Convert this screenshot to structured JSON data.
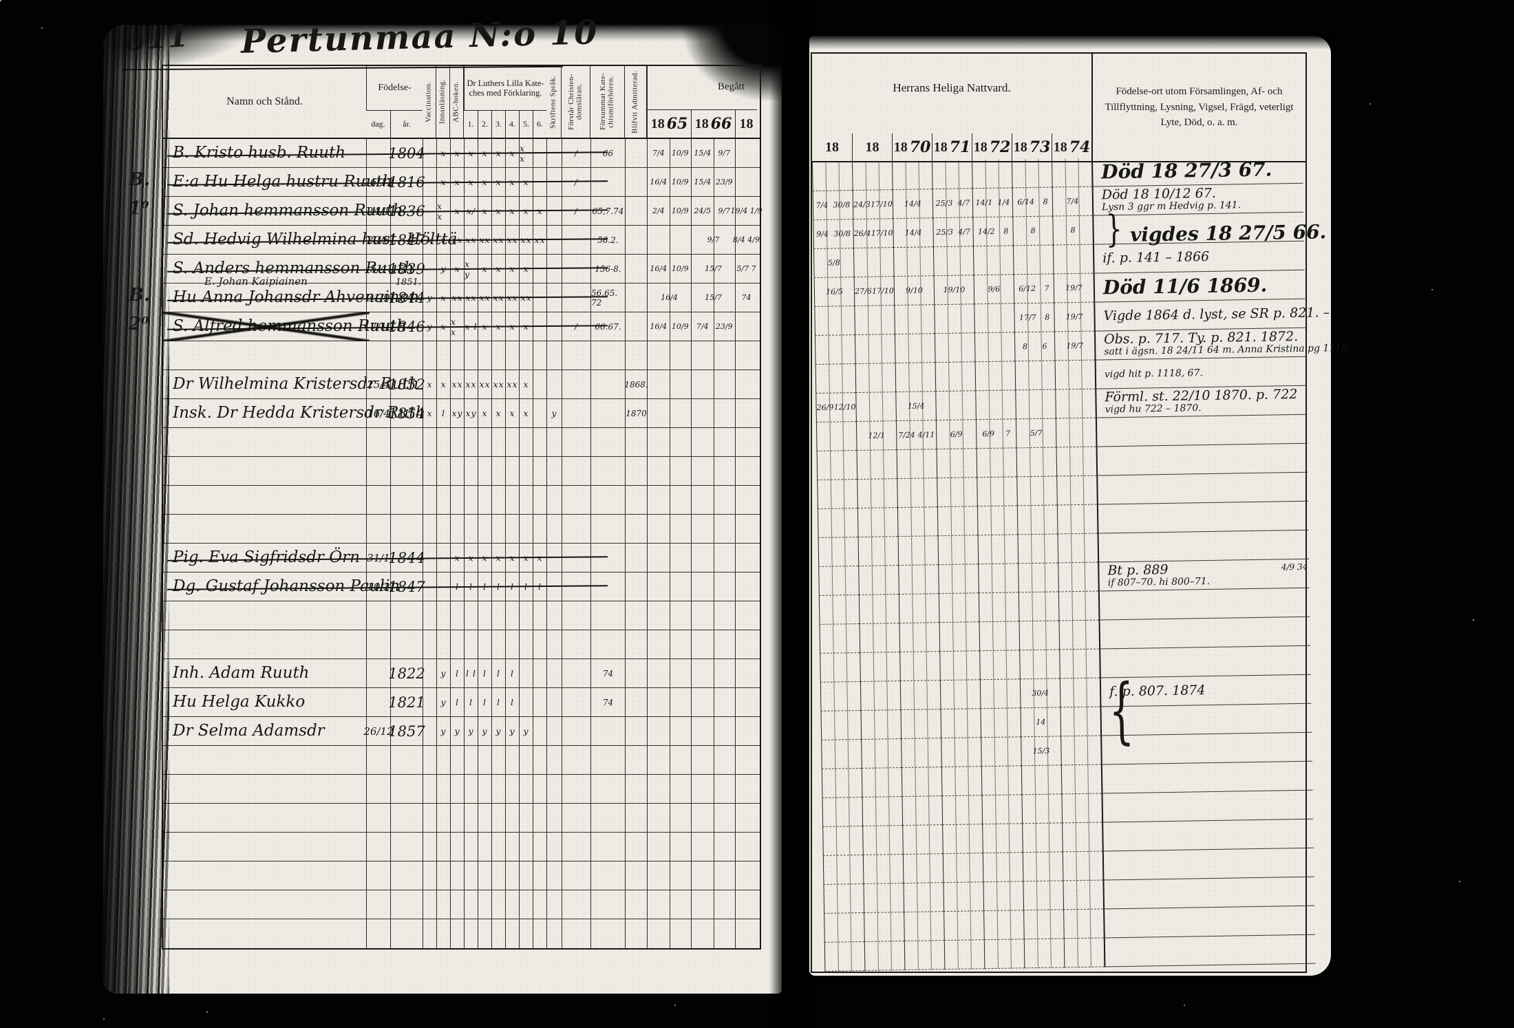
{
  "scan": {
    "left_page_number": "811",
    "title": "Pertunmaa N:o 10",
    "ink_color": "#181715",
    "paper_color": "#edebe4",
    "background_color": "#020202"
  },
  "left_page": {
    "columns": {
      "name": "Namn och Stånd.",
      "fodelse": "Födelse-",
      "dag": "dag.",
      "ar": "år.",
      "vaccination": "Vaccination.",
      "innanlasning": "Innanläsning.",
      "abc": "ABC-boken.",
      "kateches": "Dr Luthers Lilla Kate­ches med Förklaring.",
      "kateches_sub": [
        "1.",
        "2.",
        "3.",
        "4.",
        "5.",
        "6."
      ],
      "skrift": "Skriftens Språk.",
      "forstar": "Förstår Christen­domsläran.",
      "forsummat": "Försummat Kate­chismiförhören.",
      "blifvit": "Blifvit Admit­terad.",
      "begatt": "Begått"
    },
    "years": [
      {
        "printed": "18",
        "hand": "65"
      },
      {
        "printed": "18",
        "hand": "66"
      },
      {
        "printed": "18",
        "hand": ""
      }
    ],
    "rows": [
      {
        "r": 0,
        "margin": "",
        "name": "B. Kristo husb. Ruuth",
        "dag": "",
        "ar": "1804",
        "cat": [
          "",
          "x",
          "x",
          "x",
          "x",
          "x",
          "x",
          "x x",
          ""
        ],
        "skrift": "",
        "forstar": "/",
        "forsummat": "66",
        "admit": "",
        "y65": "7/4 10/9",
        "y66": "15/4 9/7",
        "y18": "",
        "struck": true
      },
      {
        "r": 1,
        "margin": "B.",
        "name": "E:a Hu Helga hustru Ruuth",
        "dag": "26/12",
        "ar": "1816",
        "cat": [
          "",
          "x",
          "x",
          "x",
          "x",
          "x",
          "x",
          "x",
          ""
        ],
        "skrift": "",
        "forstar": "/",
        "forsummat": "",
        "admit": "",
        "y65": "16/4 10/9",
        "y66": "15/4 23/9",
        "y18": "",
        "struck": true
      },
      {
        "r": 2,
        "margin": "1⁰",
        "name": "S. Johan hemmansson Ruuth",
        "dag": "24/1",
        "ar": "1836",
        "cat": [
          "",
          "x x",
          "x",
          "x/",
          "x",
          "x",
          "x",
          "x",
          "x"
        ],
        "skrift": "",
        "forstar": "/",
        "forsummat": "65,7.74",
        "admit": "",
        "y65": "2/4 10/9",
        "y66": "24/5 9/7",
        "y18": "19/4 1/9",
        "struck": true
      },
      {
        "r": 3,
        "margin": "",
        "name": "Sd. Hedvig Wilhelmina hust. Hölttä",
        "dag": "20/6",
        "ar": "1847",
        "cat": [
          "x",
          "x",
          "xx",
          "xx",
          "xx",
          "xx",
          "xx",
          "xx",
          "xx"
        ],
        "skrift": "",
        "forstar": "",
        "forsummat": "58.2.",
        "admit": "",
        "y65": "",
        "y66": "9/7",
        "y18": "8/4 4/9",
        "struck": true
      },
      {
        "r": 4,
        "margin": "",
        "name": "S. Anders hemmansson Ruuth",
        "name2": "E. Johan Kaipiainen",
        "dag": "5/4",
        "ar": "1839",
        "ar2": "1851.",
        "cat": [
          "",
          "y",
          "x",
          "x y",
          "x",
          "x",
          "x",
          "x",
          ""
        ],
        "skrift": "",
        "forstar": "",
        "forsummat": "156-8.",
        "admit": "",
        "y65": "16/4 10/9",
        "y66": "15/7",
        "y18": "5/7 7",
        "struck": true
      },
      {
        "r": 5,
        "margin": "B.",
        "name": "Hu Anna Johansdr Ahvenainen",
        "dag": "31/9",
        "ar": "1844",
        "cat": [
          "y",
          "x",
          "xx",
          "xx",
          "xx",
          "xx",
          "xx",
          "xx",
          ""
        ],
        "skrift": "",
        "forstar": "",
        "forsummat": "56.65. 72",
        "admit": "",
        "y65": "16/4",
        "y66": "15/7",
        "y18": "74",
        "struck": true
      },
      {
        "r": 6,
        "margin": "2⁰",
        "name": "S. Alfred hemmansson Ruuth",
        "dag": "17/10",
        "ar": "1846",
        "cat": [
          "y",
          "x",
          "x x",
          "x l",
          "x",
          "x",
          "x",
          "x",
          ""
        ],
        "skrift": "",
        "forstar": "/",
        "forsummat": "66.67.",
        "admit": "",
        "y65": "16/4 10/9",
        "y66": "7/4 23/9",
        "y18": "",
        "struck": true,
        "cross": true
      },
      {
        "r": 8,
        "margin": "",
        "name": "Dr Wilhelmina Kristersdr Ruth",
        "dag": "25/4",
        "ar": "1852",
        "cat": [
          "x",
          "x",
          "xx",
          "xx",
          "xx",
          "xx",
          "xx",
          "x",
          ""
        ],
        "skrift": "",
        "forstar": "",
        "forsummat": "",
        "admit": "1868.",
        "y65": "",
        "y66": "",
        "y18": ""
      },
      {
        "r": 9,
        "margin": "",
        "name": "Insk. Dr Hedda Kristersdr Ruth",
        "dag": "16/4",
        "ar": "1854",
        "cat": [
          "x",
          "l",
          "xy",
          "xy",
          "x",
          "x",
          "x",
          "x",
          ""
        ],
        "skrift": "y",
        "forstar": "",
        "forsummat": "",
        "admit": "1870",
        "y65": "",
        "y66": "",
        "y18": ""
      },
      {
        "r": 14,
        "margin": "",
        "name": "Pig. Eva Sigfridsdr Örn",
        "dag": "31/1",
        "ar": "1844",
        "cat": [
          "",
          "",
          "x",
          "x",
          "x",
          "x",
          "x",
          "x",
          "x"
        ],
        "skrift": "",
        "forstar": "",
        "forsummat": "",
        "admit": "",
        "y65": "",
        "y66": "",
        "y18": "",
        "struck": true
      },
      {
        "r": 15,
        "margin": "",
        "name": "Dg. Gustaf Johansson Paulin",
        "dag": "10/2",
        "ar": "1847",
        "cat": [
          "",
          "",
          "l",
          "l",
          "l",
          "l",
          "l",
          "l",
          "l"
        ],
        "skrift": "",
        "forstar": "",
        "forsummat": "",
        "admit": "",
        "y65": "",
        "y66": "",
        "y18": "",
        "struck": true
      },
      {
        "r": 18,
        "margin": "",
        "name": "Inh. Adam Ruuth",
        "dag": "",
        "ar": "1822",
        "cat": [
          "",
          "y",
          "l",
          "l l",
          "l",
          "l",
          "l",
          "",
          ""
        ],
        "skrift": "",
        "forstar": "",
        "forsummat": "74",
        "admit": "",
        "y65": "",
        "y66": "",
        "y18": ""
      },
      {
        "r": 19,
        "margin": "",
        "name": "Hu Helga Kukko",
        "dag": "",
        "ar": "1821",
        "cat": [
          "",
          "y",
          "l",
          "l",
          "l",
          "l",
          "l",
          "",
          ""
        ],
        "skrift": "",
        "forstar": "",
        "forsummat": "74",
        "admit": "",
        "y65": "",
        "y66": "",
        "y18": ""
      },
      {
        "r": 20,
        "margin": "",
        "name": "Dr Selma Adamsdr",
        "dag": "26/12",
        "ar": "1857",
        "cat": [
          "",
          "y",
          "y",
          "y",
          "y",
          "y",
          "y",
          "y",
          ""
        ],
        "skrift": "",
        "forstar": "",
        "forsummat": "",
        "admit": "",
        "y65": "",
        "y66": "",
        "y18": ""
      }
    ]
  },
  "right_page": {
    "header": "Herrans Heliga Nattvard.",
    "notes_header": "Födelse-ort utom Församlingen, Af- och Tillflyttning, Lysning, Vigsel, Frägd, veterligt Lyte, Död, o. a. m.",
    "years": [
      {
        "printed": "18",
        "hand": ""
      },
      {
        "printed": "18",
        "hand": ""
      },
      {
        "printed": "18",
        "hand": "70"
      },
      {
        "printed": "18",
        "hand": "71"
      },
      {
        "printed": "18",
        "hand": "72"
      },
      {
        "printed": "18",
        "hand": "73"
      },
      {
        "printed": "18",
        "hand": "74"
      }
    ],
    "rows": [
      {
        "r": 0,
        "cells": [
          "",
          "",
          "",
          "",
          "",
          "",
          ""
        ],
        "note": "Död 18 27/3 67.",
        "note_big": true
      },
      {
        "r": 1,
        "cells": [
          "7/4 30/8",
          "24/3 17/10",
          "14/4",
          "25/3 4/7",
          "14/1 1/4",
          "6/14 8",
          "7/4"
        ],
        "note": "Död 18 10/12 67.",
        "note2": "Lysn 3 ggr m Hedvig p. 141."
      },
      {
        "r": 2,
        "cells": [
          "9/4 30/8",
          "26/4 17/10",
          "14/4",
          "25/3 4/7",
          "14/2 8",
          "8",
          "8"
        ],
        "note": "vigdes 18 27/5 66.",
        "note_big": true,
        "brace_right": true
      },
      {
        "r": 3,
        "cells": [
          "5/8",
          "",
          "",
          "",
          "",
          "",
          ""
        ],
        "note": "if. p. 141 – 1866"
      },
      {
        "r": 4,
        "cells": [
          "16/5",
          "27/6 17/10",
          "9/10",
          "19/10",
          "9/6",
          "6/12 7",
          "19/7"
        ],
        "note": "Död 11/6 1869.",
        "note_big": true
      },
      {
        "r": 5,
        "cells": [
          "",
          "",
          "",
          "",
          "",
          "17/7 8",
          "19/7"
        ],
        "note": "Vigde 1864 d. lyst, se SR p. 821. –"
      },
      {
        "r": 6,
        "cells": [
          "",
          "",
          "",
          "",
          "",
          "8 6",
          "19/7"
        ],
        "note": "Obs. p. 717. Ty. p. 821. 1872.",
        "note2": "satt i ägsn. 18 24/11 64 m. Anna Kristina pg 1118."
      },
      {
        "r": 7,
        "cells": [
          "",
          "",
          "",
          "",
          "",
          "",
          ""
        ],
        "note2": "vigd hit p. 1118, 67."
      },
      {
        "r": 8,
        "cells": [
          "26/9 12/10",
          "",
          "15/4",
          "",
          "",
          "",
          ""
        ],
        "note": "Förml. st. 22/10 1870. p. 722",
        "note2": "vigd hu 722 – 1870."
      },
      {
        "r": 9,
        "cells": [
          "",
          "12/1",
          "7/24 4/11",
          "6/9",
          "6/9 7",
          "5/7",
          ""
        ]
      },
      {
        "r": 14,
        "cells": [
          "",
          "",
          "",
          "",
          "",
          "",
          ""
        ],
        "note": "Bt p. 889",
        "note2": "if 807–70. hi 800–71.",
        "rm": "4/9 34"
      },
      {
        "r": 18,
        "cells": [
          "",
          "",
          "",
          "",
          "",
          "30/4",
          ""
        ],
        "note": "f. p. 807. 1874",
        "brace_left": true
      },
      {
        "r": 19,
        "cells": [
          "",
          "",
          "",
          "",
          "",
          "14",
          ""
        ]
      },
      {
        "r": 20,
        "cells": [
          "",
          "",
          "",
          "",
          "",
          "15/3",
          ""
        ]
      }
    ]
  }
}
